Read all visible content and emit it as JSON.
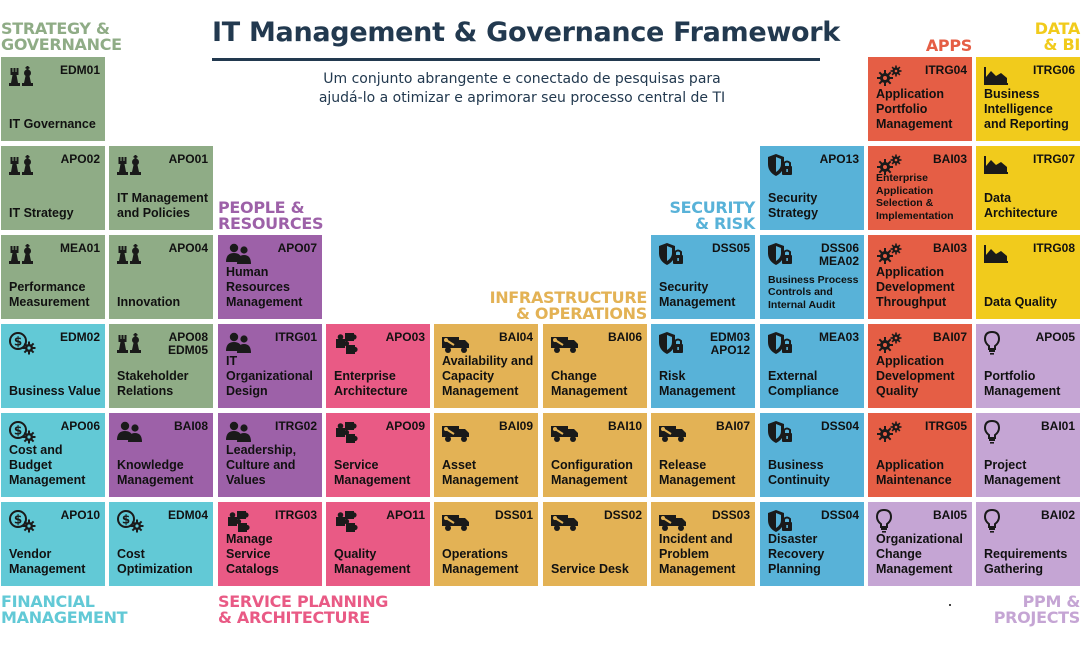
{
  "header": {
    "title": "IT Management & Governance Framework",
    "subtitle_line1": "Um conjunto abrangente e conectado de pesquisas para",
    "subtitle_line2": "ajudá-lo a otimizar e aprimorar seu processo central de TI"
  },
  "colors": {
    "governance": "#8fac86",
    "financial": "#62c9d6",
    "people": "#9d61a8",
    "service": "#e95a85",
    "infra": "#e3b255",
    "security": "#58b2d8",
    "apps": "#e55e45",
    "data": "#f1cb1c",
    "ppm": "#c5a5d4",
    "title": "#22394f"
  },
  "categories": {
    "strategy": [
      "STRATEGY &",
      "GOVERNANCE"
    ],
    "people": [
      "PEOPLE &",
      "RESOURCES"
    ],
    "infra": [
      "INFRASTRUCTURE",
      "& OPERATIONS"
    ],
    "security": [
      "SECURITY",
      "& RISK"
    ],
    "apps": [
      "APPS"
    ],
    "data": [
      "DATA",
      "& BI"
    ],
    "financial": [
      "FINANCIAL",
      "MANAGEMENT"
    ],
    "service": [
      "SERVICE PLANNING",
      "& ARCHITECTURE"
    ],
    "ppm": [
      "PPM &",
      "PROJECTS"
    ]
  },
  "tiles": {
    "edm01": {
      "code": "EDM01",
      "name": "IT Governance",
      "icon": "chess-pieces-icon"
    },
    "apo02": {
      "code": "APO02",
      "name": "IT Strategy",
      "icon": "chess-pieces-icon"
    },
    "apo01": {
      "code": "APO01",
      "name": "IT Management and Policies",
      "icon": "chess-pieces-icon"
    },
    "mea01": {
      "code": "MEA01",
      "name": "Performance Measurement",
      "icon": "chess-pieces-icon"
    },
    "apo04": {
      "code": "APO04",
      "name": "Innovation",
      "icon": "chess-pieces-icon"
    },
    "edm02": {
      "code": "EDM02",
      "name": "Business Value",
      "icon": "dollar-gear-icon"
    },
    "apo08": {
      "code": "APO08 EDM05",
      "name": "Stakeholder Relations",
      "icon": "chess-pieces-icon"
    },
    "apo06": {
      "code": "APO06",
      "name": "Cost and Budget Management",
      "icon": "dollar-gear-icon"
    },
    "apo10": {
      "code": "APO10",
      "name": "Vendor Management",
      "icon": "dollar-gear-icon"
    },
    "edm04": {
      "code": "EDM04",
      "name": "Cost Optimization",
      "icon": "dollar-gear-icon"
    },
    "apo07": {
      "code": "APO07",
      "name": "Human Resources Management",
      "icon": "people-icon"
    },
    "itrg01": {
      "code": "ITRG01",
      "name": "IT Organizational Design",
      "icon": "people-icon"
    },
    "bai08": {
      "code": "BAI08",
      "name": "Knowledge Management",
      "icon": "people-icon"
    },
    "itrg02": {
      "code": "ITRG02",
      "name": "Leadership, Culture and Values",
      "icon": "people-icon"
    },
    "itrg03": {
      "code": "ITRG03",
      "name": "Manage Service Catalogs",
      "icon": "puzzle-icon"
    },
    "apo03": {
      "code": "APO03",
      "name": "Enterprise Architecture",
      "icon": "puzzle-icon"
    },
    "apo09": {
      "code": "APO09",
      "name": "Service Management",
      "icon": "puzzle-icon"
    },
    "apo11": {
      "code": "APO11",
      "name": "Quality Management",
      "icon": "puzzle-icon"
    },
    "bai04": {
      "code": "BAI04",
      "name": "Availability and Capacity Management",
      "icon": "truck-wrench-icon"
    },
    "bai06": {
      "code": "BAI06",
      "name": "Change Management",
      "icon": "truck-wrench-icon"
    },
    "bai09": {
      "code": "BAI09",
      "name": "Asset Management",
      "icon": "truck-wrench-icon"
    },
    "bai10": {
      "code": "BAI10",
      "name": "Configuration Management",
      "icon": "truck-wrench-icon"
    },
    "dss01": {
      "code": "DSS01",
      "name": "Operations Management",
      "icon": "truck-wrench-icon"
    },
    "dss02": {
      "code": "DSS02",
      "name": "Service Desk",
      "icon": "truck-wrench-icon"
    },
    "bai07": {
      "code": "BAI07",
      "name": "Release Management",
      "icon": "truck-wrench-icon"
    },
    "dss03": {
      "code": "DSS03",
      "name": "Incident and Problem Management",
      "icon": "truck-wrench-icon"
    },
    "dss05": {
      "code": "DSS05",
      "name": "Security Management",
      "icon": "shield-lock-icon"
    },
    "edm03": {
      "code": "EDM03 APO12",
      "name": "Risk Management",
      "icon": "shield-lock-icon"
    },
    "apo13": {
      "code": "APO13",
      "name": "Security Strategy",
      "icon": "shield-lock-icon"
    },
    "dss06": {
      "code": "DSS06 MEA02",
      "name": "Business Process Controls and Internal Audit",
      "icon": "shield-lock-icon"
    },
    "mea03": {
      "code": "MEA03",
      "name": "External Compliance",
      "icon": "shield-lock-icon"
    },
    "dss04a": {
      "code": "DSS04",
      "name": "Business Continuity",
      "icon": "shield-lock-icon"
    },
    "dss04b": {
      "code": "DSS04",
      "name": "Disaster Recovery Planning",
      "icon": "shield-lock-icon"
    },
    "itrg04": {
      "code": "ITRG04",
      "name": "Application Portfolio Management",
      "icon": "gears-icon"
    },
    "bai03a": {
      "code": "BAI03",
      "name": "Enterprise Application Selection & Implementation",
      "icon": "gears-icon"
    },
    "bai03b": {
      "code": "BAI03",
      "name": "Application Development Throughput",
      "icon": "gears-icon"
    },
    "bai07b": {
      "code": "BAI07",
      "name": "Application Development Quality",
      "icon": "gears-icon"
    },
    "itrg05": {
      "code": "ITRG05",
      "name": "Application Maintenance",
      "icon": "gears-icon"
    },
    "bai05": {
      "code": "BAI05",
      "name": "Organizational Change Management",
      "icon": "lightbulb-icon"
    },
    "itrg06": {
      "code": "ITRG06",
      "name": "Business Intelligence and Reporting",
      "icon": "area-chart-icon"
    },
    "itrg07": {
      "code": "ITRG07",
      "name": "Data Architecture",
      "icon": "area-chart-icon"
    },
    "itrg08": {
      "code": "ITRG08",
      "name": "Data Quality",
      "icon": "area-chart-icon"
    },
    "apo05": {
      "code": "APO05",
      "name": "Portfolio Management",
      "icon": "lightbulb-icon"
    },
    "bai01": {
      "code": "BAI01",
      "name": "Project Management",
      "icon": "lightbulb-icon"
    },
    "bai02": {
      "code": "BAI02",
      "name": "Requirements Gathering",
      "icon": "lightbulb-icon"
    }
  }
}
